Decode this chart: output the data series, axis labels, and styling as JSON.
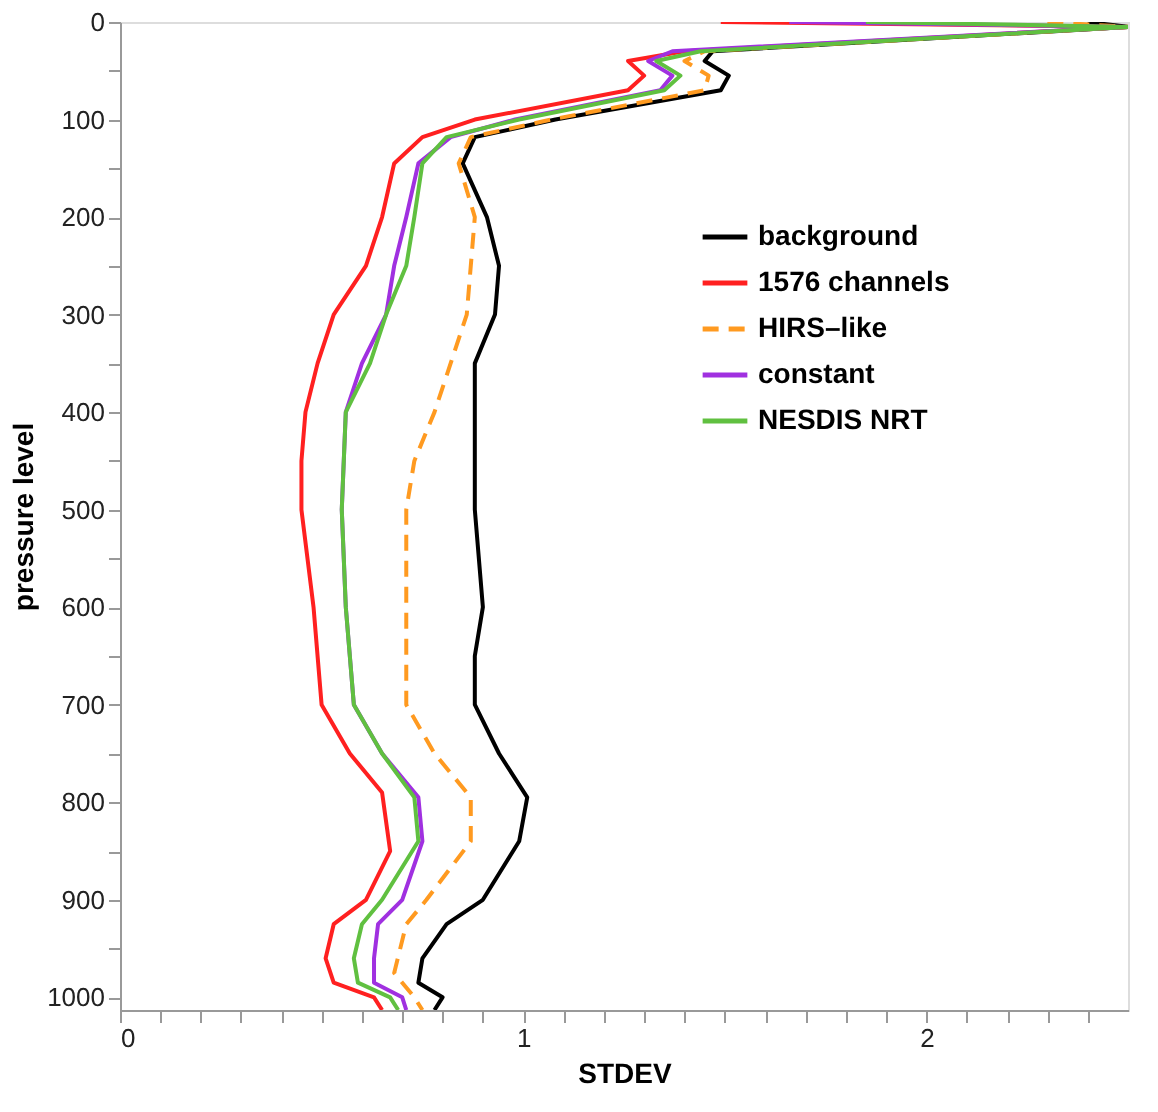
{
  "chart_data": {
    "type": "line",
    "orientation": "horizontal",
    "xlabel": "STDEV",
    "ylabel": "pressure level",
    "xlim": [
      0,
      2.5
    ],
    "ylim": [
      1013,
      0
    ],
    "xticks": [
      0,
      {
        "value": 0.1,
        "label": null
      },
      {
        "value": 0.2,
        "label": null
      },
      {
        "value": 0.3,
        "label": null
      },
      {
        "value": 0.4,
        "label": null
      },
      {
        "value": 0.5,
        "label": null
      },
      {
        "value": 0.6,
        "label": null
      },
      {
        "value": 0.7,
        "label": null
      },
      {
        "value": 0.8,
        "label": null
      },
      {
        "value": 0.9,
        "label": null
      },
      1,
      {
        "value": 1.1,
        "label": null
      },
      {
        "value": 1.2,
        "label": null
      },
      {
        "value": 1.3,
        "label": null
      },
      {
        "value": 1.4,
        "label": null
      },
      {
        "value": 1.5,
        "label": null
      },
      {
        "value": 1.6,
        "label": null
      },
      {
        "value": 1.7,
        "label": null
      },
      {
        "value": 1.8,
        "label": null
      },
      {
        "value": 1.9,
        "label": null
      },
      2,
      {
        "value": 2.1,
        "label": null
      },
      {
        "value": 2.2,
        "label": null
      },
      {
        "value": 2.3,
        "label": null
      },
      {
        "value": 2.4,
        "label": null
      }
    ],
    "yticks": [
      0,
      {
        "value": 50,
        "label": null
      },
      100,
      {
        "value": 150,
        "label": null
      },
      200,
      {
        "value": 250,
        "label": null
      },
      300,
      {
        "value": 350,
        "label": null
      },
      400,
      {
        "value": 450,
        "label": null
      },
      500,
      {
        "value": 550,
        "label": null
      },
      600,
      {
        "value": 650,
        "label": null
      },
      700,
      {
        "value": 750,
        "label": null
      },
      800,
      {
        "value": 850,
        "label": null
      },
      900,
      {
        "value": 950,
        "label": null
      },
      1000
    ],
    "grid": false,
    "legend": "top right",
    "marker": "none",
    "series": [
      {
        "name": "background",
        "color": "#000000",
        "line_style": "solid",
        "x": [
          0,
          5,
          30,
          40,
          55,
          70,
          100,
          118,
          145,
          200,
          250,
          300,
          350,
          400,
          500,
          600,
          650,
          700,
          750,
          795,
          840,
          900,
          925,
          960,
          985,
          1000,
          1013
        ],
        "values": [
          2.4,
          2.5,
          1.47,
          1.45,
          1.51,
          1.49,
          1.08,
          0.88,
          0.85,
          0.91,
          0.94,
          0.93,
          0.88,
          0.88,
          0.88,
          0.9,
          0.88,
          0.88,
          0.94,
          1.01,
          0.99,
          0.9,
          0.81,
          0.75,
          0.74,
          0.8,
          0.78
        ]
      },
      {
        "name": "1576 channels",
        "color": "#ff2020",
        "line_style": "solid",
        "x": [
          0,
          5,
          30,
          40,
          55,
          70,
          100,
          118,
          145,
          200,
          250,
          300,
          350,
          400,
          450,
          500,
          600,
          700,
          750,
          790,
          850,
          900,
          925,
          960,
          985,
          1000,
          1013
        ],
        "values": [
          1.49,
          2.5,
          1.4,
          1.26,
          1.3,
          1.26,
          0.88,
          0.75,
          0.68,
          0.65,
          0.61,
          0.53,
          0.49,
          0.46,
          0.45,
          0.45,
          0.48,
          0.5,
          0.57,
          0.65,
          0.67,
          0.61,
          0.53,
          0.51,
          0.53,
          0.63,
          0.65
        ]
      },
      {
        "name": "HIRS–like",
        "color": "#ff9a20",
        "line_style": "dashed",
        "x": [
          0,
          5,
          30,
          40,
          55,
          70,
          100,
          118,
          145,
          200,
          250,
          300,
          350,
          400,
          450,
          500,
          600,
          700,
          750,
          795,
          840,
          900,
          925,
          975,
          985,
          1000,
          1013
        ],
        "values": [
          2.3,
          2.5,
          1.45,
          1.4,
          1.46,
          1.45,
          1.07,
          0.87,
          0.84,
          0.88,
          0.87,
          0.86,
          0.82,
          0.78,
          0.73,
          0.71,
          0.71,
          0.71,
          0.78,
          0.87,
          0.87,
          0.76,
          0.71,
          0.68,
          0.7,
          0.73,
          0.75
        ]
      },
      {
        "name": "constant",
        "color": "#a030e0",
        "line_style": "solid",
        "x": [
          0,
          5,
          30,
          40,
          55,
          70,
          100,
          118,
          145,
          200,
          250,
          300,
          350,
          400,
          500,
          600,
          700,
          750,
          795,
          840,
          900,
          925,
          960,
          985,
          1000,
          1013
        ],
        "values": [
          1.66,
          2.5,
          1.37,
          1.31,
          1.37,
          1.34,
          0.98,
          0.82,
          0.74,
          0.71,
          0.68,
          0.66,
          0.6,
          0.56,
          0.55,
          0.56,
          0.58,
          0.65,
          0.74,
          0.75,
          0.7,
          0.64,
          0.63,
          0.63,
          0.7,
          0.71
        ]
      },
      {
        "name": "NESDIS NRT",
        "color": "#60c040",
        "line_style": "solid",
        "x": [
          0,
          5,
          30,
          40,
          55,
          70,
          100,
          118,
          145,
          200,
          250,
          300,
          350,
          400,
          500,
          600,
          700,
          750,
          795,
          840,
          900,
          925,
          960,
          985,
          1000,
          1013
        ],
        "values": [
          1.85,
          2.5,
          1.44,
          1.33,
          1.39,
          1.35,
          0.99,
          0.81,
          0.75,
          0.73,
          0.71,
          0.66,
          0.62,
          0.56,
          0.55,
          0.56,
          0.58,
          0.65,
          0.73,
          0.74,
          0.65,
          0.6,
          0.58,
          0.59,
          0.67,
          0.69
        ]
      }
    ]
  }
}
